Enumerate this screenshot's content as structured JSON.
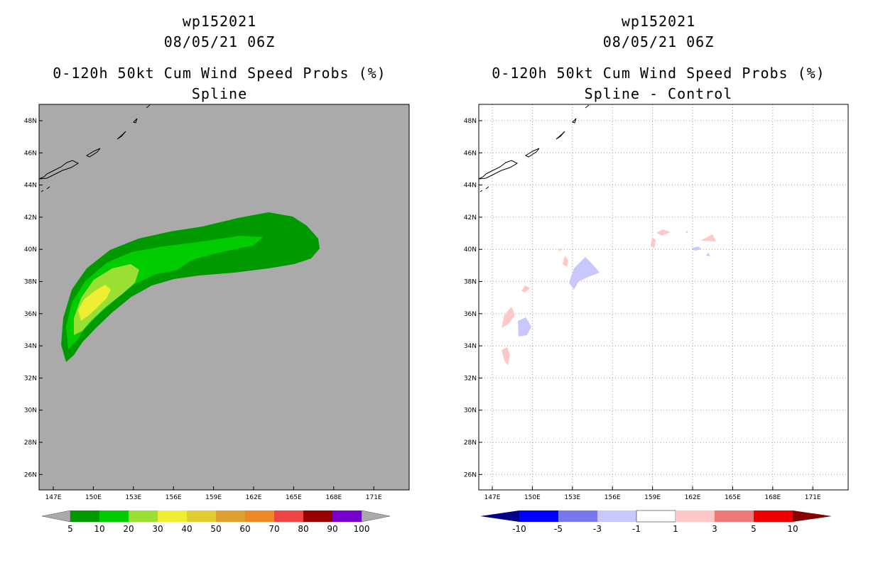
{
  "left_panel": {
    "title_line1": "wp152021",
    "title_line2": "08/05/21 06Z",
    "title_line3": "0-120h 50kt Cum Wind Speed Probs (%)",
    "title_line4": "Spline",
    "background_color": "#aaaaaa",
    "colorbar": {
      "labels": [
        "5",
        "10",
        "20",
        "30",
        "40",
        "50",
        "60",
        "70",
        "80",
        "90",
        "100"
      ],
      "colors": [
        "#009900",
        "#00cc00",
        "#99e033",
        "#eeee33",
        "#e0cc33",
        "#e0a030",
        "#ee8822",
        "#ee4444",
        "#990000",
        "#7700cc"
      ],
      "end_color": "#aaaaaa"
    }
  },
  "right_panel": {
    "title_line1": "wp152021",
    "title_line2": "08/05/21 06Z",
    "title_line3": "0-120h 50kt Cum Wind Speed Probs (%)",
    "title_line4": "Spline - Control",
    "background_color": "#ffffff",
    "colorbar": {
      "labels": [
        "-10",
        "-5",
        "-3",
        "-1",
        "1",
        "3",
        "5",
        "10"
      ],
      "colors": [
        "#0000ff",
        "#7777ee",
        "#c8c8ff",
        "#ffffff",
        "#ffc8c8",
        "#ee7777",
        "#ee0000"
      ],
      "low_end_color": "#000088",
      "high_end_color": "#880000"
    }
  },
  "axes": {
    "lat_labels": [
      "48N",
      "46N",
      "44N",
      "42N",
      "40N",
      "38N",
      "36N",
      "34N",
      "32N",
      "30N",
      "28N",
      "26N"
    ],
    "lon_labels": [
      "147E",
      "150E",
      "153E",
      "156E",
      "159E",
      "162E",
      "165E",
      "168E",
      "171E"
    ]
  }
}
